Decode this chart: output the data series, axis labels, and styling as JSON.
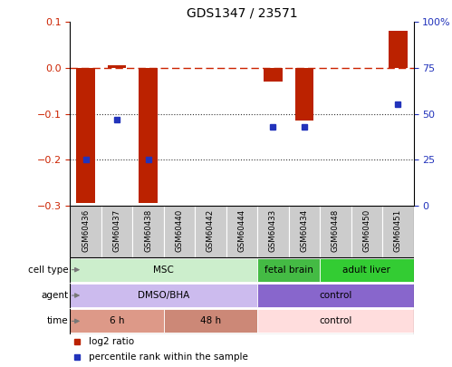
{
  "title": "GDS1347 / 23571",
  "samples": [
    "GSM60436",
    "GSM60437",
    "GSM60438",
    "GSM60440",
    "GSM60442",
    "GSM60444",
    "GSM60433",
    "GSM60434",
    "GSM60448",
    "GSM60450",
    "GSM60451"
  ],
  "log2_ratio": [
    -0.295,
    0.005,
    -0.295,
    0.0,
    0.0,
    0.0,
    -0.03,
    -0.115,
    0.0,
    0.0,
    0.08
  ],
  "percentile_rank": [
    25,
    47,
    25,
    null,
    null,
    null,
    43,
    43,
    null,
    null,
    55
  ],
  "ylim_left": [
    -0.3,
    0.1
  ],
  "ylim_right": [
    0,
    100
  ],
  "yticks_left": [
    -0.3,
    -0.2,
    -0.1,
    0.0,
    0.1
  ],
  "yticks_right": [
    0,
    25,
    50,
    75,
    100
  ],
  "ytick_labels_right": [
    "0",
    "25",
    "50",
    "75",
    "100%"
  ],
  "bar_color": "#bb2200",
  "dot_color": "#2233bb",
  "dashed_line_color": "#cc2200",
  "dotted_line_color": "#333333",
  "cell_type_groups": [
    {
      "label": "MSC",
      "start": 0,
      "end": 6,
      "color": "#cceecc"
    },
    {
      "label": "fetal brain",
      "start": 6,
      "end": 8,
      "color": "#44bb44"
    },
    {
      "label": "adult liver",
      "start": 8,
      "end": 11,
      "color": "#33cc33"
    }
  ],
  "agent_groups": [
    {
      "label": "DMSO/BHA",
      "start": 0,
      "end": 6,
      "color": "#ccbbee"
    },
    {
      "label": "control",
      "start": 6,
      "end": 11,
      "color": "#8866cc"
    }
  ],
  "time_groups": [
    {
      "label": "6 h",
      "start": 0,
      "end": 3,
      "color": "#dd9988"
    },
    {
      "label": "48 h",
      "start": 3,
      "end": 6,
      "color": "#cc8877"
    },
    {
      "label": "control",
      "start": 6,
      "end": 11,
      "color": "#ffdddd"
    }
  ],
  "row_labels": [
    "cell type",
    "agent",
    "time"
  ],
  "legend_red_label": "log2 ratio",
  "legend_blue_label": "percentile rank within the sample",
  "legend_red_color": "#bb2200",
  "legend_blue_color": "#2233bb",
  "sample_band_color": "#cccccc",
  "left_axis_color": "#cc2200",
  "right_axis_color": "#2233bb",
  "background_color": "#ffffff"
}
